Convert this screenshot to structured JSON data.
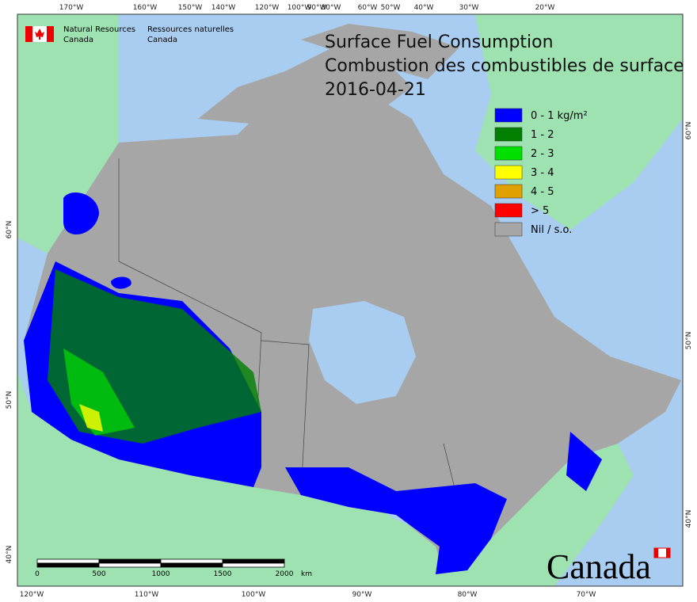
{
  "logo": {
    "english": [
      "Natural Resources",
      "Canada"
    ],
    "french": [
      "Ressources naturelles",
      "Canada"
    ]
  },
  "title": [
    "Surface Fuel Consumption",
    "Combustion des combustibles de surface",
    "2016-04-21"
  ],
  "legend": [
    {
      "label": "0 - 1 kg/m²",
      "color": "#0000ff"
    },
    {
      "label": "1 - 2",
      "color": "#007f00"
    },
    {
      "label": "2 - 3",
      "color": "#00e000"
    },
    {
      "label": "3 - 4",
      "color": "#ffff00"
    },
    {
      "label": "4 - 5",
      "color": "#e0a000"
    },
    {
      "label": "> 5",
      "color": "#ff0000"
    },
    {
      "label": "Nil / s.o.",
      "color": "#a6a6a6"
    }
  ],
  "graticule": {
    "top": [
      "170°W",
      "160°W",
      "150°W",
      "140°W",
      "120°W",
      "100°W",
      "90°W",
      "80°W",
      "60°W",
      "50°W",
      "40°W",
      "30°W",
      "20°W"
    ],
    "bottom": [
      "120°W",
      "110°W",
      "100°W",
      "90°W",
      "80°W",
      "70°W"
    ],
    "left": [
      "60°N",
      "50°N",
      "40°N"
    ],
    "right": [
      "60°N",
      "50°N",
      "40°N"
    ]
  },
  "scale_bar": {
    "labels": [
      "0",
      "500",
      "1000",
      "1500",
      "2000"
    ],
    "unit": "km"
  },
  "wordmark": "Canada"
}
